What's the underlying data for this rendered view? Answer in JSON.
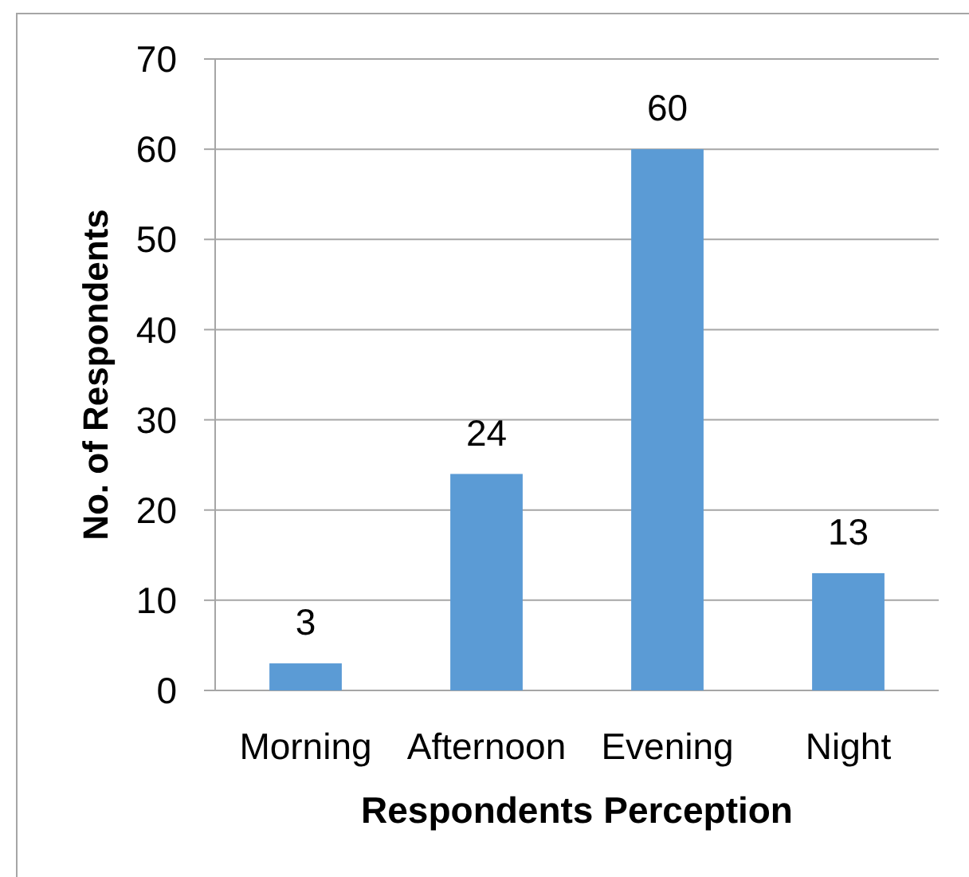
{
  "chart_data": {
    "type": "bar",
    "xlabel": "Respondents Perception",
    "ylabel": "No. of Respondents",
    "categories": [
      "Morning",
      "Afternoon",
      "Evening",
      "Night"
    ],
    "values": [
      3,
      24,
      60,
      13
    ],
    "color": "#5b9bd5",
    "ylim": [
      0,
      70
    ],
    "yticks": [
      0,
      10,
      20,
      30,
      40,
      50,
      60,
      70
    ],
    "grid": "y",
    "data_labels": true
  }
}
